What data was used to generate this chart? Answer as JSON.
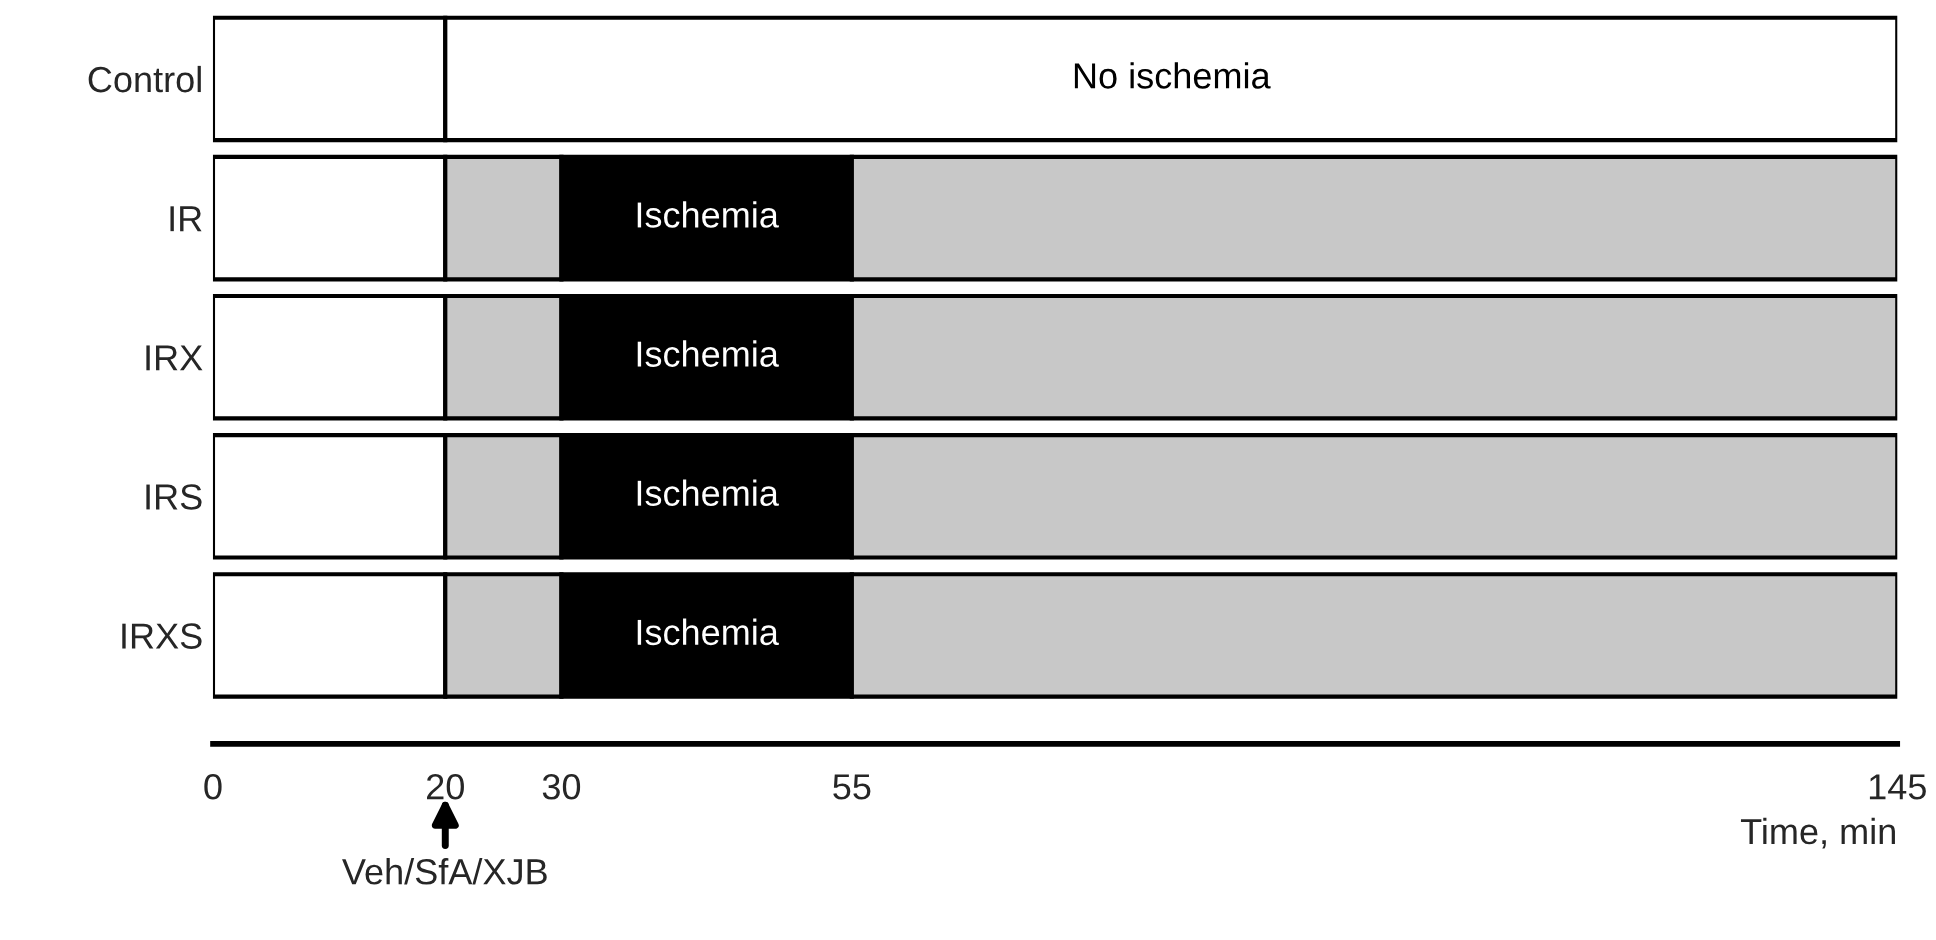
{
  "chart_data": {
    "type": "bar",
    "orientation": "horizontal",
    "stacked": true,
    "categories": [
      "Control",
      "IR",
      "IRX",
      "IRS",
      "IRXS"
    ],
    "series": [
      {
        "colors": [
          "#ffffff",
          "#ffffff",
          "#ffffff",
          "#ffffff",
          "#ffffff"
        ],
        "values": [
          20,
          20,
          20,
          20,
          20
        ]
      },
      {
        "colors": [
          "#ffffff",
          "#c8c8c8",
          "#c8c8c8",
          "#c8c8c8",
          "#c8c8c8"
        ],
        "values": [
          125,
          10,
          10,
          10,
          10
        ],
        "value_labels": [
          "No ischemia",
          null,
          null,
          null,
          null
        ]
      },
      {
        "colors": [
          "#000000",
          "#000000",
          "#000000",
          "#000000",
          "#000000"
        ],
        "values": [
          null,
          25,
          25,
          25,
          25
        ],
        "value_labels": [
          null,
          "Ischemia",
          "Ischemia",
          "Ischemia",
          "Ischemia"
        ]
      },
      {
        "colors": [
          "#c8c8c8",
          "#c8c8c8",
          "#c8c8c8",
          "#c8c8c8",
          "#c8c8c8"
        ],
        "values": [
          null,
          90,
          90,
          90,
          90
        ]
      }
    ],
    "xlim": [
      0,
      145
    ],
    "xticks": [
      0,
      20,
      30,
      55,
      145
    ],
    "xlabel": "Time, min",
    "annotations": [
      {
        "text": "Veh/SfA/XJB",
        "x": 20
      }
    ]
  }
}
